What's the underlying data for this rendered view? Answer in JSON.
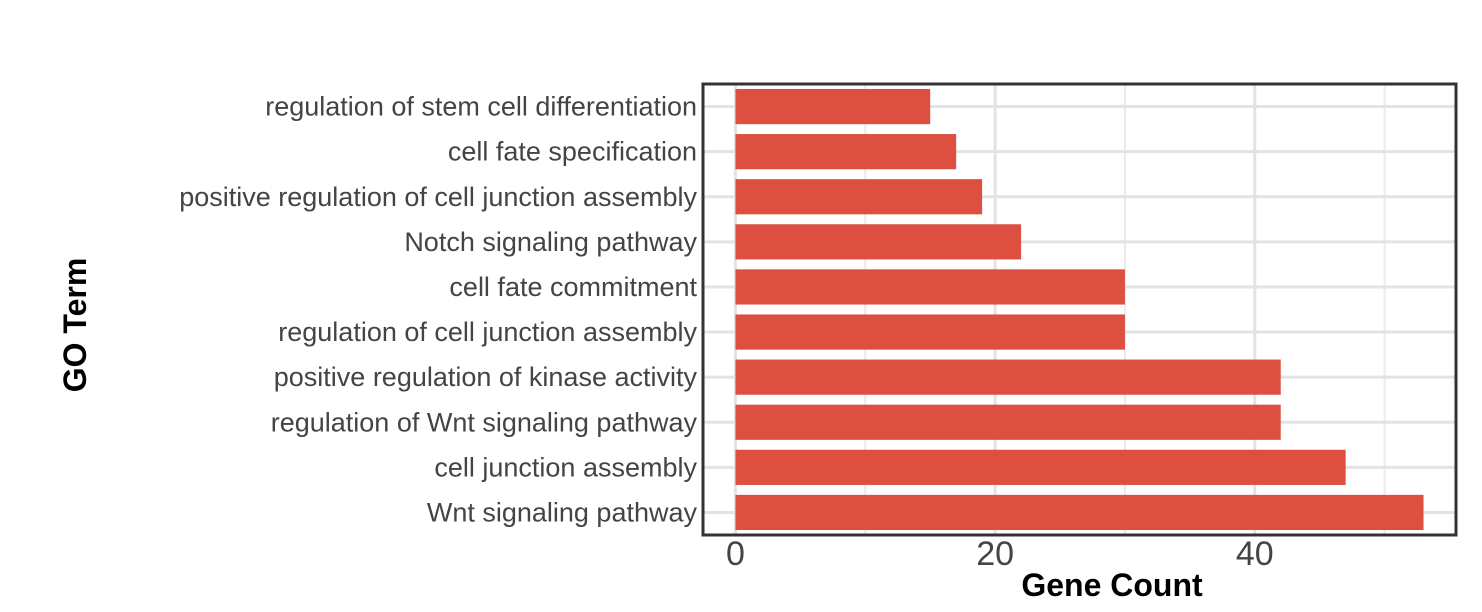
{
  "chart_data": {
    "type": "bar",
    "orientation": "horizontal",
    "xlabel": "Gene Count",
    "ylabel": "GO Term",
    "categories": [
      "regulation of stem cell differentiation",
      "cell fate specification",
      "positive regulation of cell junction assembly",
      "Notch signaling pathway",
      "cell fate commitment",
      "regulation of cell junction assembly",
      "positive regulation of kinase activity",
      "regulation of Wnt signaling pathway",
      "cell junction assembly",
      "Wnt signaling pathway"
    ],
    "values": [
      15,
      17,
      19,
      22,
      30,
      30,
      42,
      42,
      47,
      53
    ],
    "xticks": [
      0,
      20,
      40
    ],
    "xlim": [
      -2.5,
      55.5
    ],
    "grid": true,
    "bar_color": "#dc4f41"
  }
}
